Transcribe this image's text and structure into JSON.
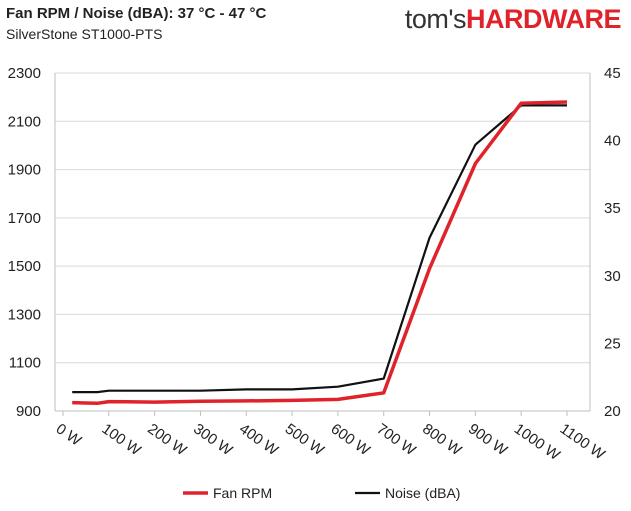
{
  "header": {
    "title": "Fan RPM / Noise (dBA): 37 °C - 47 °C",
    "subtitle": "SilverStone ST1000-PTS",
    "brand_part1": "tom's",
    "brand_part2": "HARDWARE"
  },
  "colors": {
    "fan_rpm": "#e0232a",
    "noise": "#111111",
    "grid": "#d9d9d9",
    "axis": "#bfbfbf"
  },
  "chart_data": {
    "type": "line",
    "title": "Fan RPM / Noise (dBA): 37 °C - 47 °C",
    "subtitle": "SilverStone ST1000-PTS",
    "x": [
      20,
      50,
      75,
      100,
      200,
      300,
      400,
      500,
      600,
      700,
      800,
      900,
      1000,
      1100
    ],
    "x_ticks": [
      "0 W",
      "100 W",
      "200 W",
      "300 W",
      "400 W",
      "500 W",
      "600 W",
      "700 W",
      "800 W",
      "900 W",
      "1000 W",
      "1100 W"
    ],
    "x_tick_values": [
      0,
      100,
      200,
      300,
      400,
      500,
      600,
      700,
      800,
      900,
      1000,
      1100
    ],
    "xlim": [
      0,
      1100
    ],
    "ylim_left": [
      900,
      2300
    ],
    "y_ticks_left": [
      "900",
      "1100",
      "1300",
      "1500",
      "1700",
      "1900",
      "2100",
      "2300"
    ],
    "y_tick_values_left": [
      900,
      1100,
      1300,
      1500,
      1700,
      1900,
      2100,
      2300
    ],
    "ylim_right": [
      20,
      45
    ],
    "y_ticks_right": [
      "20",
      "25",
      "30",
      "35",
      "40",
      "45"
    ],
    "y_tick_values_right": [
      20,
      25,
      30,
      35,
      40,
      45
    ],
    "grid": "horizontal",
    "legend_position": "bottom",
    "series": [
      {
        "name": "Fan RPM",
        "axis": "left",
        "values": [
          935,
          933,
          932,
          939,
          937,
          940,
          942,
          944,
          948,
          975,
          1490,
          1925,
          2175,
          2180
        ]
      },
      {
        "name": "Noise (dBA)",
        "axis": "right",
        "values": [
          21.4,
          21.4,
          21.4,
          21.5,
          21.5,
          21.5,
          21.6,
          21.6,
          21.8,
          22.4,
          32.8,
          39.7,
          42.6,
          42.6
        ]
      }
    ]
  }
}
